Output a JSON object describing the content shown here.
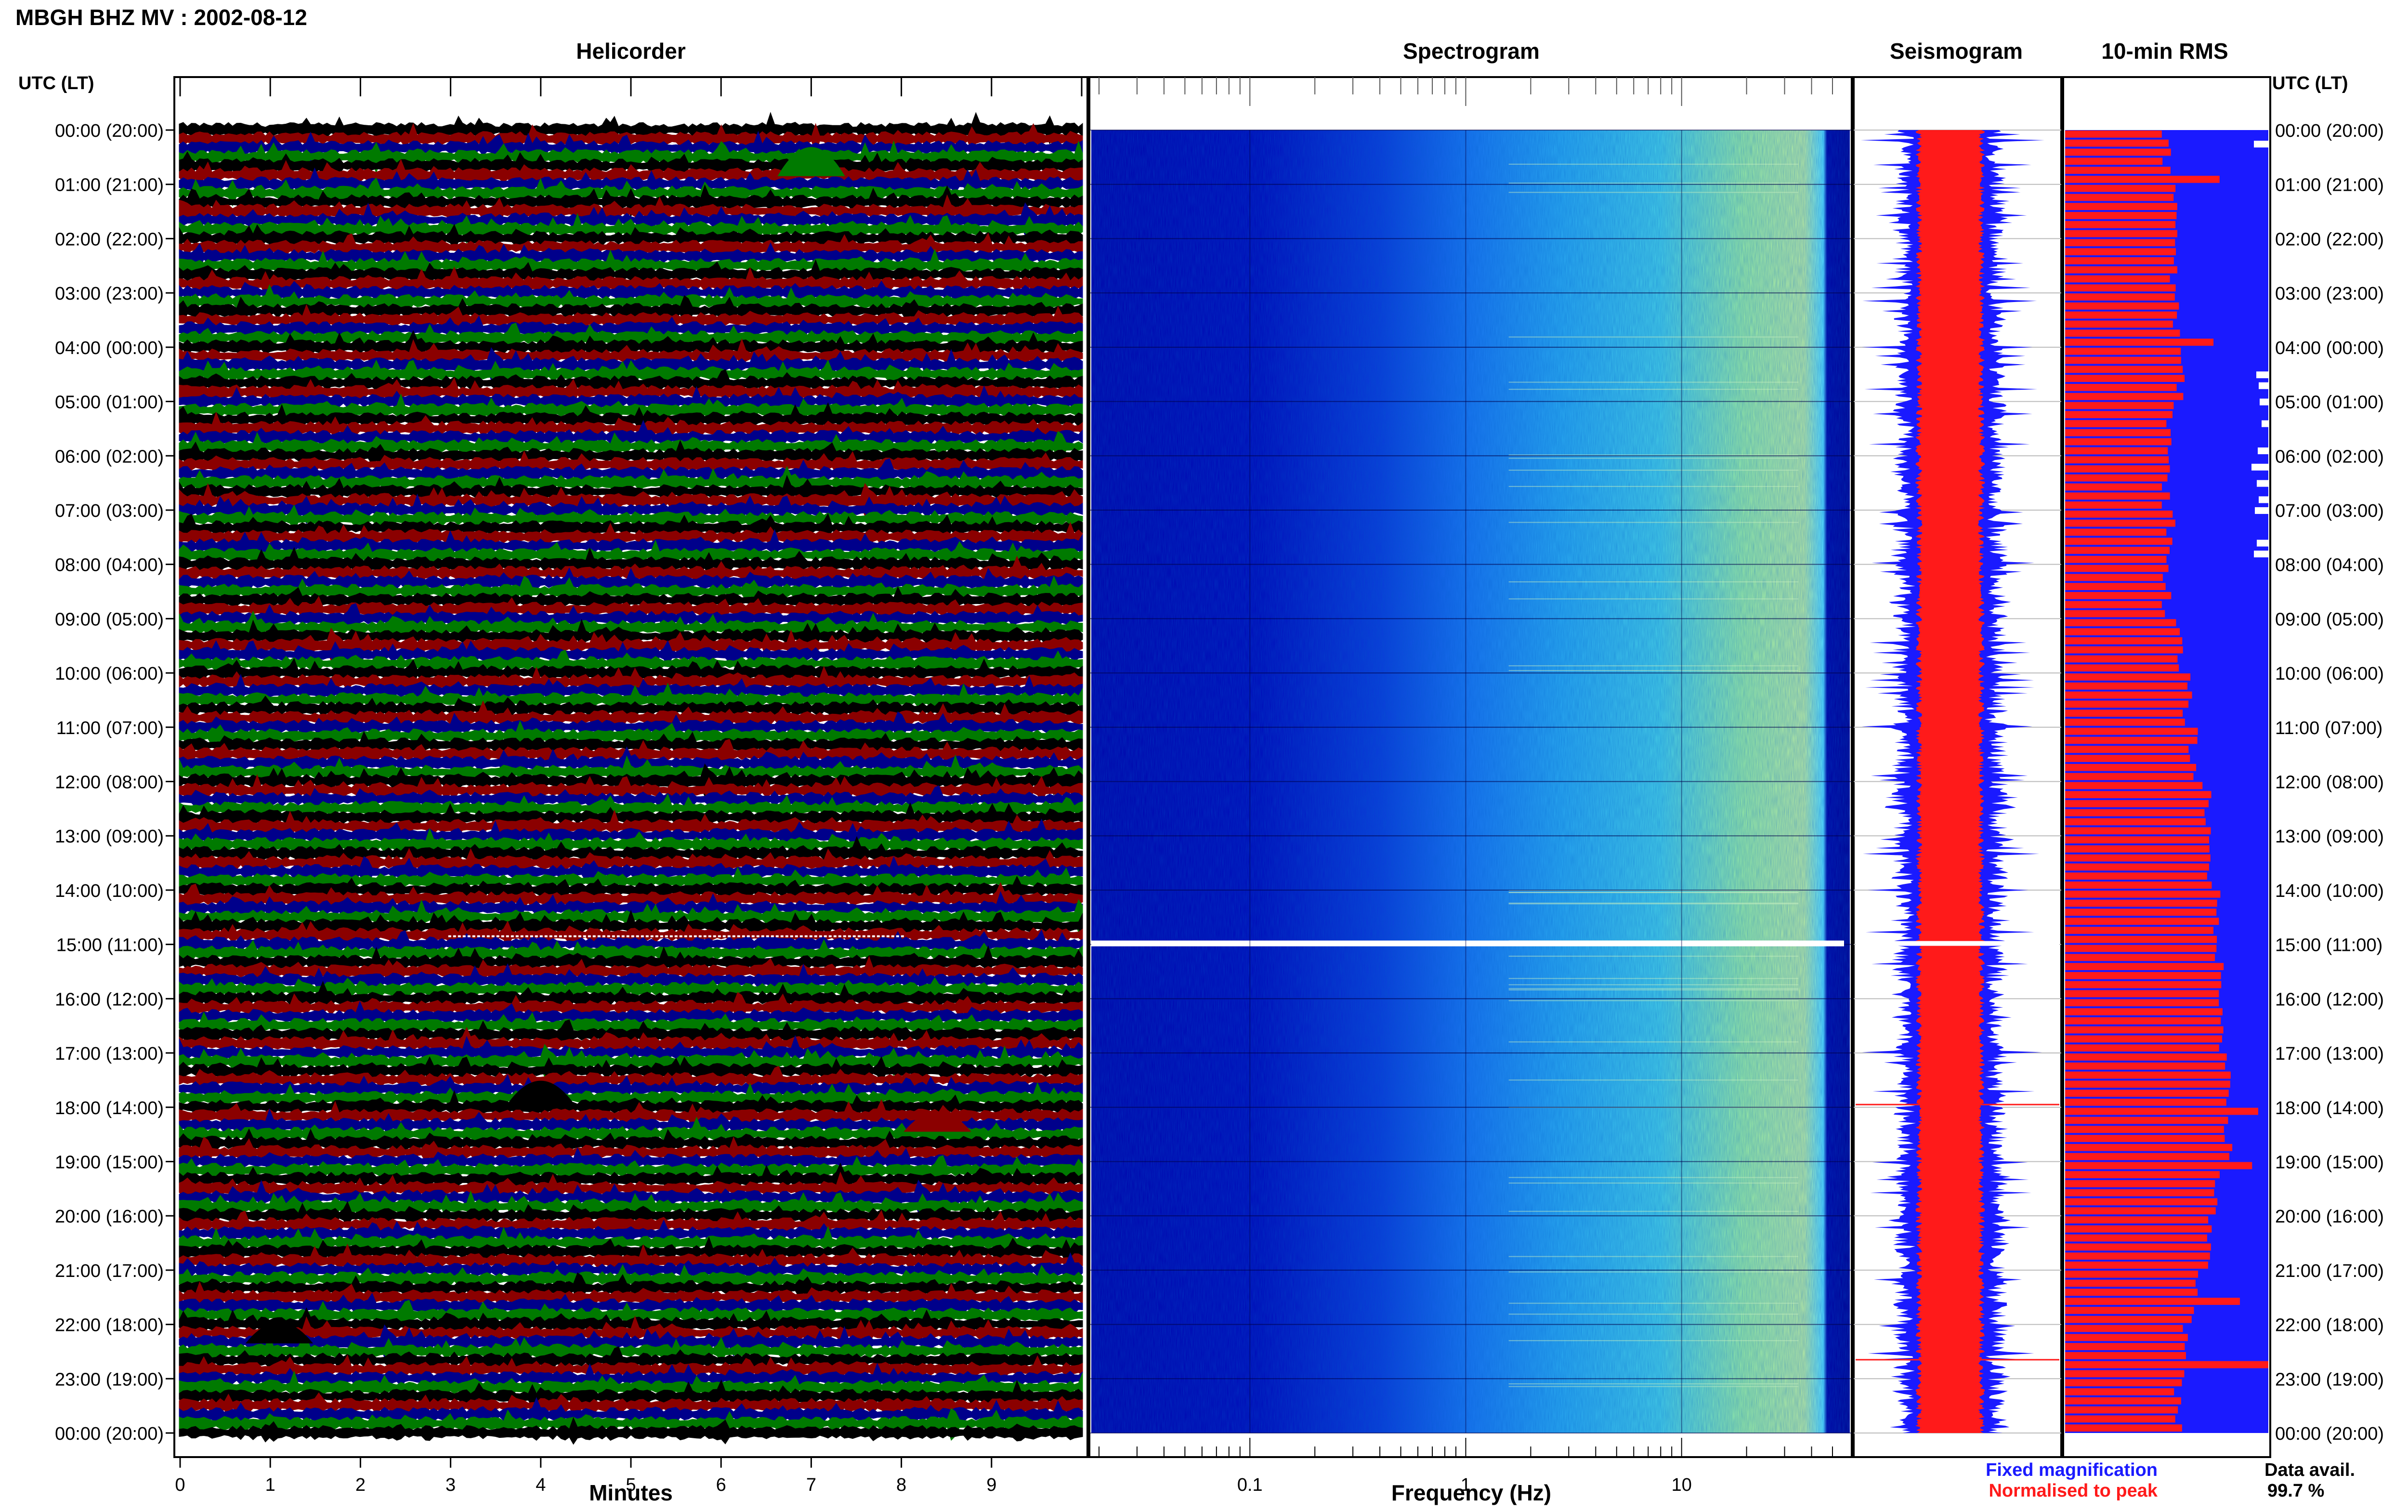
{
  "header": {
    "title": "MBGH BHZ MV : 2002-08-12"
  },
  "panels": {
    "helicorder": "Helicorder",
    "spectrogram": "Spectrogram",
    "seismogram": "Seismogram",
    "rms": "10-min RMS"
  },
  "time_axis_label": "UTC (LT)",
  "legend": {
    "fixed": "Fixed magnification",
    "normalised": "Normalised to peak",
    "fixed_color": "#1a1aff",
    "normalised_color": "#ff1a1a"
  },
  "data_availability": {
    "label": "Data avail.",
    "value": "99.7 %"
  },
  "chart_data": [
    {
      "type": "line",
      "title": "Helicorder",
      "xlabel": "Minutes",
      "xlim": [
        0,
        10
      ],
      "xticks": [
        "0",
        "1",
        "2",
        "3",
        "4",
        "5",
        "6",
        "7",
        "8",
        "9"
      ],
      "ylabel": "UTC (LT)",
      "row_labels": [
        "00:00 (20:00)",
        "01:00 (21:00)",
        "02:00 (22:00)",
        "03:00 (23:00)",
        "04:00 (00:00)",
        "05:00 (01:00)",
        "06:00 (02:00)",
        "07:00 (03:00)",
        "08:00 (04:00)",
        "09:00 (05:00)",
        "10:00 (06:00)",
        "11:00 (07:00)",
        "12:00 (08:00)",
        "13:00 (09:00)",
        "14:00 (10:00)",
        "15:00 (11:00)",
        "16:00 (12:00)",
        "17:00 (13:00)",
        "18:00 (14:00)",
        "19:00 (15:00)",
        "20:00 (16:00)",
        "21:00 (17:00)",
        "22:00 (18:00)",
        "23:00 (19:00)",
        "00:00 (20:00)"
      ],
      "trace_colors": [
        "#000000",
        "#8b0000",
        "#00008b",
        "#007a00"
      ],
      "traces_per_hour": 6
    },
    {
      "type": "heatmap",
      "title": "Spectrogram",
      "xlabel": "Frequency (Hz)",
      "xscale": "log",
      "xlim": [
        0.02,
        50
      ],
      "xticks": [
        "0.1",
        "1",
        "10"
      ],
      "data_gap_hour": 15
    },
    {
      "type": "line",
      "title": "Seismogram",
      "series": [
        {
          "name": "Fixed magnification",
          "color": "#1a1aff"
        },
        {
          "name": "Normalised to peak",
          "color": "#ff1a1a"
        }
      ]
    },
    {
      "type": "bar",
      "title": "10-min RMS",
      "series": [
        {
          "name": "Fixed magnification",
          "color": "#1a1aff"
        },
        {
          "name": "Normalised to peak",
          "color": "#ff1a1a"
        }
      ],
      "normalised_hourly": [
        0.5,
        0.55,
        0.53,
        0.55,
        0.57,
        0.52,
        0.5,
        0.52,
        0.5,
        0.56,
        0.6,
        0.63,
        0.7,
        0.72,
        0.74,
        0.76,
        0.78,
        0.8,
        0.8,
        0.75,
        0.7,
        0.64,
        0.58,
        0.56
      ],
      "spikes": [
        {
          "hour": 0.85,
          "value": 0.76
        },
        {
          "hour": 3.8,
          "value": 0.73
        },
        {
          "hour": 17.95,
          "value": 0.95
        },
        {
          "hour": 19.0,
          "value": 0.92
        },
        {
          "hour": 21.5,
          "value": 0.86
        },
        {
          "hour": 22.65,
          "value": 1.0
        }
      ]
    }
  ]
}
